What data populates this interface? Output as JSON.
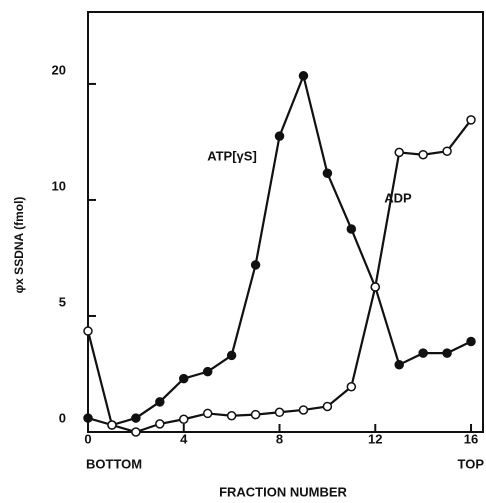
{
  "chart_data": {
    "type": "line",
    "xlabel": "FRACTION NUMBER",
    "ylabel": "φx SSDNA (fmol)",
    "x": [
      0,
      1,
      2,
      3,
      4,
      5,
      6,
      7,
      8,
      9,
      10,
      11,
      12,
      13,
      14,
      15,
      16
    ],
    "series": [
      {
        "name": "ATP[γS]",
        "color": "#111111",
        "marker": "filled",
        "values": [
          0.6,
          0.3,
          0.6,
          1.3,
          2.3,
          2.6,
          3.3,
          7.2,
          15.5,
          20.7,
          12.3,
          8.75,
          6.25,
          2.9,
          3.4,
          3.4,
          3.9
        ]
      },
      {
        "name": "ADP",
        "color": "#111111",
        "marker": "open",
        "values": [
          4.35,
          0.3,
          0,
          0.35,
          0.55,
          0.8,
          0.7,
          0.75,
          0.85,
          0.95,
          1.1,
          1.95,
          6.25,
          14.1,
          13.9,
          14.2,
          16.9
        ]
      }
    ],
    "xlim": [
      0,
      16.5
    ],
    "ylim": [
      0,
      26.2
    ],
    "xticks": [
      0,
      4,
      8,
      12,
      16
    ],
    "yticks": [
      0,
      5,
      10,
      20
    ],
    "x_end_labels": [
      "BOTTOM",
      "TOP"
    ]
  }
}
